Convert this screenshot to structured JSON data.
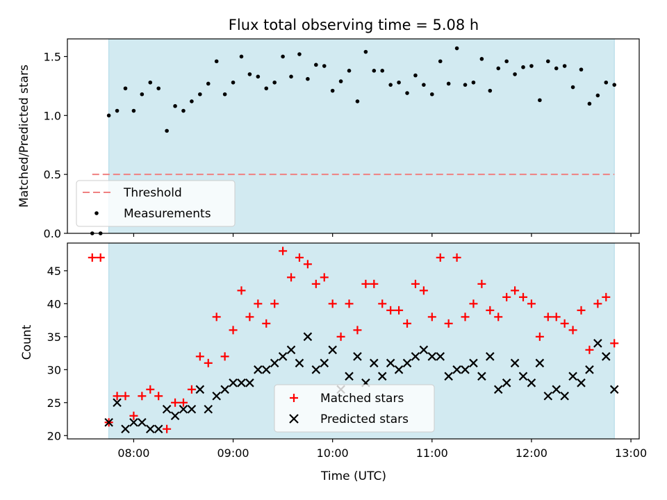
{
  "chart_data": [
    {
      "type": "scatter",
      "title": "Flux total observing time = 5.08 h",
      "xlabel": "",
      "ylabel": "Matched/Predicted stars",
      "ylim": [
        0,
        1.65
      ],
      "yticks": [
        "0.0",
        "0.5",
        "1.0",
        "1.5"
      ],
      "observing_window": [
        "07:45",
        "12:50"
      ],
      "threshold": {
        "name": "Threshold",
        "value": 0.5,
        "x_range": [
          "07:35",
          "12:50"
        ],
        "color": "#f08080"
      },
      "legend": {
        "position": "lower-left",
        "entries": [
          "Threshold",
          "Measurements"
        ]
      },
      "series": [
        {
          "name": "Measurements",
          "marker": "dot",
          "color": "#000000",
          "x": [
            "07:35",
            "07:40",
            "07:45",
            "07:50",
            "07:55",
            "08:00",
            "08:05",
            "08:10",
            "08:15",
            "08:20",
            "08:25",
            "08:30",
            "08:35",
            "08:40",
            "08:45",
            "08:50",
            "08:55",
            "09:00",
            "09:05",
            "09:10",
            "09:15",
            "09:20",
            "09:25",
            "09:30",
            "09:35",
            "09:40",
            "09:45",
            "09:50",
            "09:55",
            "10:00",
            "10:05",
            "10:10",
            "10:15",
            "10:20",
            "10:25",
            "10:30",
            "10:35",
            "10:40",
            "10:45",
            "10:50",
            "10:55",
            "11:00",
            "11:05",
            "11:10",
            "11:15",
            "11:20",
            "11:25",
            "11:30",
            "11:35",
            "11:40",
            "11:45",
            "11:50",
            "11:55",
            "12:00",
            "12:05",
            "12:10",
            "12:15",
            "12:20",
            "12:25",
            "12:30",
            "12:35",
            "12:40",
            "12:45",
            "12:50"
          ],
          "y": [
            0,
            0,
            1.0,
            1.04,
            1.23,
            1.04,
            1.18,
            1.28,
            1.23,
            0.87,
            1.08,
            1.04,
            1.12,
            1.18,
            1.27,
            1.46,
            1.18,
            1.28,
            1.5,
            1.35,
            1.33,
            1.23,
            1.28,
            1.5,
            1.33,
            1.52,
            1.31,
            1.43,
            1.42,
            1.21,
            1.29,
            1.38,
            1.12,
            1.54,
            1.38,
            1.38,
            1.26,
            1.28,
            1.19,
            1.34,
            1.26,
            1.18,
            1.46,
            1.27,
            1.57,
            1.26,
            1.28,
            1.48,
            1.21,
            1.4,
            1.46,
            1.35,
            1.41,
            1.42,
            1.13,
            1.46,
            1.4,
            1.42,
            1.24,
            1.39,
            1.1,
            1.17,
            1.28,
            1.26
          ]
        }
      ]
    },
    {
      "type": "scatter",
      "xlabel": "Time (UTC)",
      "ylabel": "Count",
      "ylim": [
        19.5,
        49.2
      ],
      "yticks": [
        "20",
        "25",
        "30",
        "35",
        "40",
        "45"
      ],
      "xticks": [
        "08:00",
        "09:00",
        "10:00",
        "11:00",
        "12:00",
        "13:00"
      ],
      "xlim": [
        "07:20",
        "13:05"
      ],
      "observing_window": [
        "07:45",
        "12:50"
      ],
      "legend": {
        "position": "lower-center",
        "entries": [
          "Matched stars",
          "Predicted stars"
        ]
      },
      "x": [
        "07:35",
        "07:40",
        "07:45",
        "07:50",
        "07:55",
        "08:00",
        "08:05",
        "08:10",
        "08:15",
        "08:20",
        "08:25",
        "08:30",
        "08:35",
        "08:40",
        "08:45",
        "08:50",
        "08:55",
        "09:00",
        "09:05",
        "09:10",
        "09:15",
        "09:20",
        "09:25",
        "09:30",
        "09:35",
        "09:40",
        "09:45",
        "09:50",
        "09:55",
        "10:00",
        "10:05",
        "10:10",
        "10:15",
        "10:20",
        "10:25",
        "10:30",
        "10:35",
        "10:40",
        "10:45",
        "10:50",
        "10:55",
        "11:00",
        "11:05",
        "11:10",
        "11:15",
        "11:20",
        "11:25",
        "11:30",
        "11:35",
        "11:40",
        "11:45",
        "11:50",
        "11:55",
        "12:00",
        "12:05",
        "12:10",
        "12:15",
        "12:20",
        "12:25",
        "12:30",
        "12:35",
        "12:40",
        "12:45",
        "12:50"
      ],
      "series": [
        {
          "name": "Matched stars",
          "marker": "plus",
          "color": "#ff0000",
          "values": [
            47,
            47,
            22,
            26,
            26,
            23,
            26,
            27,
            26,
            21,
            25,
            25,
            27,
            32,
            31,
            38,
            32,
            36,
            42,
            38,
            40,
            37,
            40,
            48,
            44,
            47,
            46,
            43,
            44,
            40,
            35,
            40,
            36,
            43,
            43,
            40,
            39,
            39,
            37,
            43,
            42,
            38,
            47,
            37,
            47,
            38,
            40,
            43,
            39,
            38,
            41,
            42,
            41,
            40,
            35,
            38,
            38,
            37,
            36,
            39,
            33,
            40,
            41,
            34
          ]
        },
        {
          "name": "Predicted stars",
          "marker": "x",
          "color": "#000000",
          "values": [
            null,
            null,
            22,
            25,
            21,
            22,
            22,
            21,
            21,
            24,
            23,
            24,
            24,
            27,
            24,
            26,
            27,
            28,
            28,
            28,
            30,
            30,
            31,
            32,
            33,
            31,
            35,
            30,
            31,
            33,
            27,
            29,
            32,
            28,
            31,
            29,
            31,
            30,
            31,
            32,
            33,
            32,
            32,
            29,
            30,
            30,
            31,
            29,
            32,
            27,
            28,
            31,
            29,
            28,
            31,
            26,
            27,
            26,
            29,
            28,
            30,
            34,
            32,
            27
          ]
        }
      ]
    }
  ]
}
